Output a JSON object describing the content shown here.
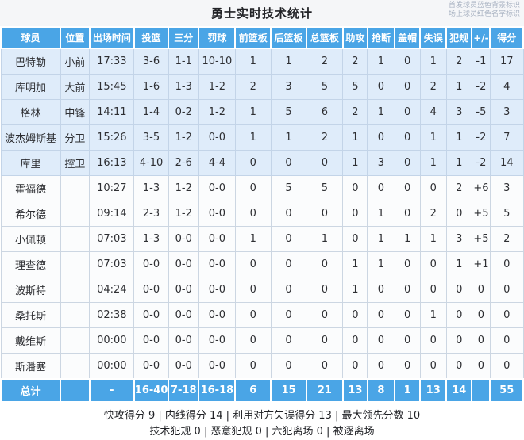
{
  "header": {
    "title": "勇士实时技术统计",
    "legend_line1": "首发球员蓝色背景标识",
    "legend_line2": "场上球员红色名字标识"
  },
  "table": {
    "columns": [
      "球员",
      "位置",
      "出场时间",
      "投篮",
      "三分",
      "罚球",
      "前篮板",
      "后篮板",
      "总篮板",
      "助攻",
      "抢断",
      "盖帽",
      "失误",
      "犯规",
      "+/-",
      "得分"
    ],
    "rows": [
      {
        "name": "巴特勒",
        "starter": true,
        "on_court": true,
        "stats": [
          "小前",
          "17:33",
          "3-6",
          "1-1",
          "10-10",
          "1",
          "1",
          "2",
          "2",
          "1",
          "0",
          "1",
          "2",
          "-1",
          "17"
        ]
      },
      {
        "name": "库明加",
        "starter": true,
        "on_court": true,
        "stats": [
          "大前",
          "15:45",
          "1-6",
          "1-3",
          "1-2",
          "2",
          "3",
          "5",
          "5",
          "0",
          "0",
          "2",
          "1",
          "-2",
          "4"
        ]
      },
      {
        "name": "格林",
        "starter": true,
        "on_court": false,
        "stats": [
          "中锋",
          "14:11",
          "1-4",
          "0-2",
          "1-2",
          "1",
          "5",
          "6",
          "2",
          "1",
          "0",
          "4",
          "3",
          "-5",
          "3"
        ]
      },
      {
        "name": "波杰姆斯基",
        "starter": true,
        "on_court": true,
        "stats": [
          "分卫",
          "15:26",
          "3-5",
          "1-2",
          "0-0",
          "1",
          "1",
          "2",
          "1",
          "0",
          "0",
          "1",
          "1",
          "-2",
          "7"
        ]
      },
      {
        "name": "库里",
        "starter": true,
        "on_court": true,
        "stats": [
          "控卫",
          "16:13",
          "4-10",
          "2-6",
          "4-4",
          "0",
          "0",
          "0",
          "1",
          "3",
          "0",
          "1",
          "1",
          "-2",
          "14"
        ]
      },
      {
        "name": "霍福德",
        "starter": false,
        "on_court": true,
        "stats": [
          "",
          "10:27",
          "1-3",
          "1-2",
          "0-0",
          "0",
          "5",
          "5",
          "0",
          "0",
          "0",
          "0",
          "2",
          "+6",
          "3"
        ]
      },
      {
        "name": "希尔德",
        "starter": false,
        "on_court": false,
        "stats": [
          "",
          "09:14",
          "2-3",
          "1-2",
          "0-0",
          "0",
          "0",
          "0",
          "0",
          "1",
          "0",
          "2",
          "0",
          "+5",
          "5"
        ]
      },
      {
        "name": "小佩顿",
        "starter": false,
        "on_court": false,
        "stats": [
          "",
          "07:03",
          "1-3",
          "0-0",
          "0-0",
          "1",
          "0",
          "1",
          "0",
          "1",
          "1",
          "1",
          "3",
          "+5",
          "2"
        ]
      },
      {
        "name": "理查德",
        "starter": false,
        "on_court": false,
        "stats": [
          "",
          "07:03",
          "0-0",
          "0-0",
          "0-0",
          "0",
          "0",
          "0",
          "1",
          "1",
          "0",
          "0",
          "1",
          "+1",
          "0"
        ]
      },
      {
        "name": "波斯特",
        "starter": false,
        "on_court": false,
        "stats": [
          "",
          "04:24",
          "0-0",
          "0-0",
          "0-0",
          "0",
          "0",
          "0",
          "1",
          "0",
          "0",
          "0",
          "0",
          "0",
          "0"
        ]
      },
      {
        "name": "桑托斯",
        "starter": false,
        "on_court": false,
        "stats": [
          "",
          "02:38",
          "0-0",
          "0-0",
          "0-0",
          "0",
          "0",
          "0",
          "0",
          "0",
          "0",
          "1",
          "0",
          "0",
          "0"
        ]
      },
      {
        "name": "戴维斯",
        "starter": false,
        "on_court": false,
        "stats": [
          "",
          "00:00",
          "0-0",
          "0-0",
          "0-0",
          "0",
          "0",
          "0",
          "0",
          "0",
          "0",
          "0",
          "0",
          "0",
          "0"
        ]
      },
      {
        "name": "斯潘塞",
        "starter": false,
        "on_court": false,
        "stats": [
          "",
          "00:00",
          "0-0",
          "0-0",
          "0-0",
          "0",
          "0",
          "0",
          "0",
          "0",
          "0",
          "0",
          "0",
          "0",
          "0"
        ]
      }
    ],
    "total": {
      "label": "总计",
      "stats": [
        "",
        "-",
        "16-40",
        "7-18",
        "16-18",
        "6",
        "15",
        "21",
        "13",
        "8",
        "1",
        "13",
        "14",
        "",
        "55"
      ]
    }
  },
  "footer": {
    "line1": "快攻得分 9 | 内线得分 14 | 利用对方失误得分 13 | 最大领先分数 10",
    "line2": "技术犯规 0 | 恶意犯规 0 | 六犯离场 0 | 被逐离场"
  },
  "colors": {
    "header_blue": "#4aa5e6",
    "starter_row_bg": "#dfecfa",
    "on_court_name_red": "#e23b3b",
    "grid_line": "#ccd6e2"
  }
}
